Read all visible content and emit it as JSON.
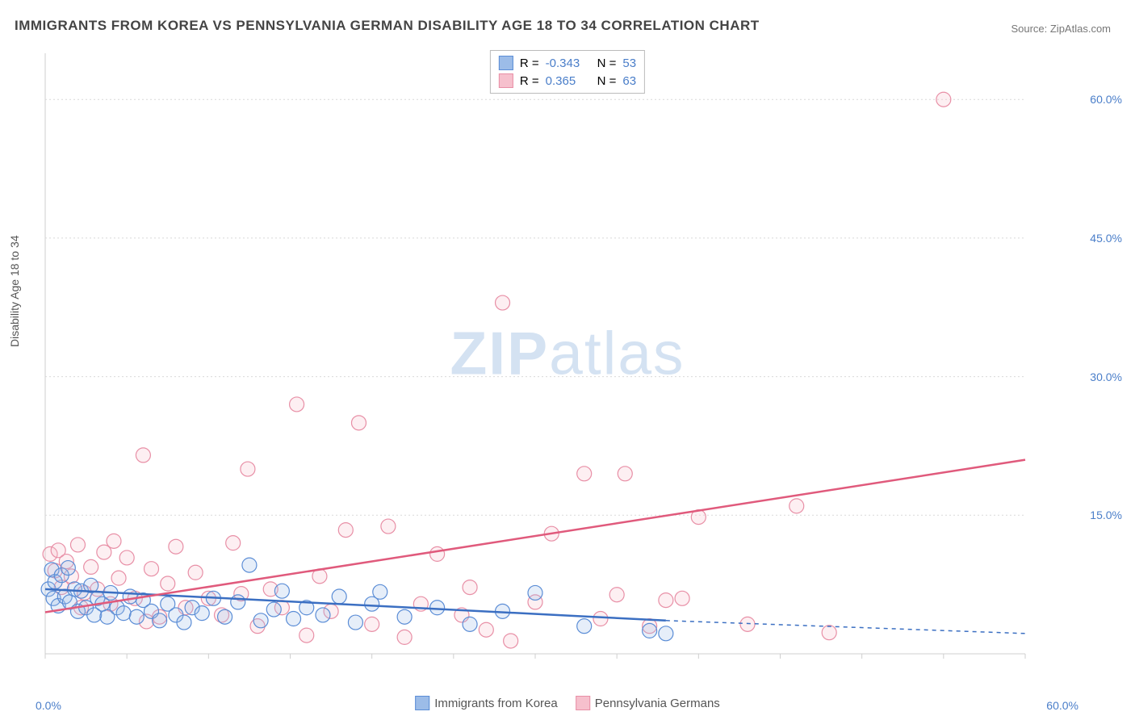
{
  "title": "IMMIGRANTS FROM KOREA VS PENNSYLVANIA GERMAN DISABILITY AGE 18 TO 34 CORRELATION CHART",
  "source": "Source: ZipAtlas.com",
  "watermark_bold": "ZIP",
  "watermark_rest": "atlas",
  "y_axis_label": "Disability Age 18 to 34",
  "chart": {
    "type": "scatter",
    "plot_bg": "#ffffff",
    "grid_color": "#d9d9d9",
    "grid_dash": "2,3",
    "axis_color": "#cfcfcf",
    "x_min": 0,
    "x_max": 60,
    "y_min": 0,
    "y_max": 65,
    "y_ticks": [
      15.0,
      30.0,
      45.0,
      60.0
    ],
    "y_tick_labels": [
      "15.0%",
      "30.0%",
      "45.0%",
      "60.0%"
    ],
    "x_tick_start_label": "0.0%",
    "x_tick_end_label": "60.0%",
    "x_minor_ticks": [
      0,
      5,
      10,
      15,
      20,
      25,
      30,
      35,
      40,
      45,
      50,
      55,
      60
    ],
    "marker_radius": 9,
    "marker_stroke_width": 1.2,
    "marker_fill_opacity": 0.25,
    "label_fontsize": 14,
    "tick_color": "#4a7ec9"
  },
  "series": {
    "blue": {
      "label": "Immigrants from Korea",
      "color_stroke": "#5b8dd6",
      "color_fill": "#9cbce8",
      "R_label": "R =",
      "R_value": "-0.343",
      "N_label": "N =",
      "N_value": "53",
      "trend": {
        "x1": 0,
        "y1": 7.0,
        "x2": 38,
        "y2": 3.6,
        "solid_color": "#3b6fc2",
        "dash_from_x": 38,
        "dash_to_x": 60,
        "y_dash_end": 2.2
      },
      "points": [
        [
          0.2,
          7.0
        ],
        [
          0.4,
          9.1
        ],
        [
          0.5,
          6.0
        ],
        [
          0.6,
          7.8
        ],
        [
          0.8,
          5.2
        ],
        [
          1.0,
          8.5
        ],
        [
          1.2,
          6.2
        ],
        [
          1.4,
          9.3
        ],
        [
          1.5,
          5.6
        ],
        [
          1.8,
          7.0
        ],
        [
          2.0,
          4.6
        ],
        [
          2.2,
          6.8
        ],
        [
          2.5,
          5.0
        ],
        [
          2.8,
          7.4
        ],
        [
          3.0,
          4.2
        ],
        [
          3.2,
          6.0
        ],
        [
          3.5,
          5.4
        ],
        [
          3.8,
          4.0
        ],
        [
          4.0,
          6.6
        ],
        [
          4.4,
          5.0
        ],
        [
          4.8,
          4.4
        ],
        [
          5.2,
          6.2
        ],
        [
          5.6,
          4.0
        ],
        [
          6.0,
          5.8
        ],
        [
          6.5,
          4.6
        ],
        [
          7.0,
          3.6
        ],
        [
          7.5,
          5.4
        ],
        [
          8.0,
          4.2
        ],
        [
          8.5,
          3.4
        ],
        [
          9.0,
          5.0
        ],
        [
          9.6,
          4.4
        ],
        [
          10.3,
          6.0
        ],
        [
          11.0,
          4.0
        ],
        [
          11.8,
          5.6
        ],
        [
          12.5,
          9.6
        ],
        [
          13.2,
          3.6
        ],
        [
          14.0,
          4.8
        ],
        [
          14.5,
          6.8
        ],
        [
          15.2,
          3.8
        ],
        [
          16.0,
          5.0
        ],
        [
          17.0,
          4.2
        ],
        [
          18.0,
          6.2
        ],
        [
          19.0,
          3.4
        ],
        [
          20.0,
          5.4
        ],
        [
          20.5,
          6.7
        ],
        [
          22.0,
          4.0
        ],
        [
          24.0,
          5.0
        ],
        [
          26.0,
          3.2
        ],
        [
          28.0,
          4.6
        ],
        [
          30.0,
          6.6
        ],
        [
          33.0,
          3.0
        ],
        [
          37.0,
          2.5
        ],
        [
          38.0,
          2.2
        ]
      ]
    },
    "pink": {
      "label": "Pennsylvania Germans",
      "color_stroke": "#e88fa6",
      "color_fill": "#f6c0cd",
      "R_label": "R =",
      "R_value": "0.365",
      "N_label": "N =",
      "N_value": "63",
      "trend": {
        "x1": 0,
        "y1": 4.5,
        "x2": 60,
        "y2": 21.0,
        "solid_color": "#e05a7c"
      },
      "points": [
        [
          0.3,
          10.8
        ],
        [
          0.6,
          9.0
        ],
        [
          0.8,
          11.2
        ],
        [
          1.0,
          7.2
        ],
        [
          1.3,
          10.0
        ],
        [
          1.6,
          8.4
        ],
        [
          2.0,
          11.8
        ],
        [
          2.4,
          6.6
        ],
        [
          2.8,
          9.4
        ],
        [
          3.2,
          7.0
        ],
        [
          3.6,
          11.0
        ],
        [
          4.0,
          5.4
        ],
        [
          4.5,
          8.2
        ],
        [
          5.0,
          10.4
        ],
        [
          5.5,
          6.0
        ],
        [
          6.0,
          21.5
        ],
        [
          6.5,
          9.2
        ],
        [
          7.0,
          4.0
        ],
        [
          7.5,
          7.6
        ],
        [
          8.0,
          11.6
        ],
        [
          8.6,
          5.0
        ],
        [
          9.2,
          8.8
        ],
        [
          10.0,
          6.0
        ],
        [
          10.8,
          4.2
        ],
        [
          11.5,
          12.0
        ],
        [
          12.4,
          20.0
        ],
        [
          13.0,
          3.0
        ],
        [
          13.8,
          7.0
        ],
        [
          14.5,
          5.0
        ],
        [
          15.4,
          27.0
        ],
        [
          16.0,
          2.0
        ],
        [
          16.8,
          8.4
        ],
        [
          17.5,
          4.6
        ],
        [
          18.4,
          13.4
        ],
        [
          19.2,
          25.0
        ],
        [
          20.0,
          3.2
        ],
        [
          21.0,
          13.8
        ],
        [
          22.0,
          1.8
        ],
        [
          23.0,
          5.4
        ],
        [
          24.0,
          10.8
        ],
        [
          25.5,
          4.2
        ],
        [
          27.0,
          2.6
        ],
        [
          28.0,
          38.0
        ],
        [
          28.5,
          1.4
        ],
        [
          30.0,
          5.6
        ],
        [
          31.0,
          13.0
        ],
        [
          33.0,
          19.5
        ],
        [
          34.0,
          3.8
        ],
        [
          35.0,
          6.4
        ],
        [
          35.5,
          19.5
        ],
        [
          37.0,
          3.0
        ],
        [
          38.0,
          5.8
        ],
        [
          39.0,
          6.0
        ],
        [
          40.0,
          14.8
        ],
        [
          43.0,
          3.2
        ],
        [
          46.0,
          16.0
        ],
        [
          48.0,
          2.3
        ],
        [
          55.0,
          60.0
        ],
        [
          26.0,
          7.2
        ],
        [
          12.0,
          6.5
        ],
        [
          6.2,
          3.5
        ],
        [
          2.2,
          5.0
        ],
        [
          4.2,
          12.2
        ]
      ]
    }
  },
  "legend_top_text_color": "#4a7ec9"
}
